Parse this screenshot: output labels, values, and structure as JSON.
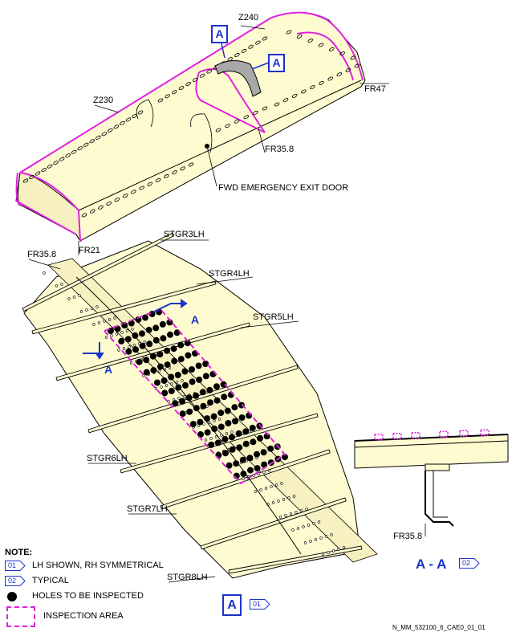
{
  "labels": {
    "z240": "Z240",
    "z230": "Z230",
    "fr47": "FR47",
    "fr35_8_top": "FR35.8",
    "fr21": "FR21",
    "fwd_exit_door": "FWD EMERGENCY EXIT DOOR",
    "fr35_8_detail": "FR35.8",
    "stgr3": "STGR3LH",
    "stgr4": "STGR4LH",
    "stgr5": "STGR5LH",
    "stgr6": "STGR6LH",
    "stgr7": "STGR7LH",
    "stgr8": "STGR8LH",
    "fr35_8_section": "FR35.8"
  },
  "view_markers": {
    "a_top_1": "A",
    "a_top_2": "A",
    "a_cut_1": "A",
    "a_cut_2": "A",
    "a_detail": "A"
  },
  "detail_ref": "01",
  "section": {
    "title": "A - A",
    "ref": "02"
  },
  "notes": {
    "title": "NOTE:",
    "items": [
      {
        "ref": "01",
        "text": "LH SHOWN, RH SYMMETRICAL"
      },
      {
        "ref": "02",
        "text": "TYPICAL"
      },
      {
        "symbol": "black-dot",
        "text": "HOLES TO BE INSPECTED"
      },
      {
        "symbol": "magenta-dashed-box",
        "text": "INSPECTION AREA"
      }
    ]
  },
  "figure_id": "N_MM_532100_6_CAE0_01_01",
  "colors": {
    "skin": "#fffbd0",
    "outline": "#000000",
    "inspection_area": "#e020e0",
    "view_marker": "#1a33c8",
    "hole": "#000000"
  }
}
